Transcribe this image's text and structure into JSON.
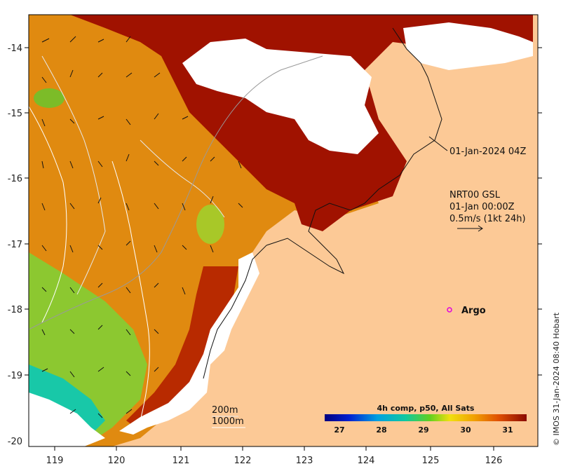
{
  "map": {
    "lon_ticks": [
      "119",
      "120",
      "121",
      "122",
      "123",
      "124",
      "125",
      "126"
    ],
    "lat_ticks": [
      "-14",
      "-15",
      "-16",
      "-17",
      "-18",
      "-19",
      "-20"
    ],
    "colors": {
      "land": "#fcc996",
      "no_data": "#ffffff",
      "sst_hot": "#a01200",
      "sst_warm": "#e08a10",
      "sst_mid": "#8cc830",
      "sst_cool": "#18c8a8"
    },
    "sst_regions": [
      "sst-hot-region",
      "sst-warm-region",
      "sst-mid-region",
      "sst-cool-region"
    ],
    "contours": [
      "200m",
      "1000m"
    ]
  },
  "annotations": {
    "image_time": "01-Jan-2024 04Z",
    "current_source": "NRT00 GSL",
    "current_time": "01-Jan 00:00Z",
    "current_scale": "0.5m/s (1kt 24h)",
    "argo_label": "Argo",
    "contour_200": "200m",
    "contour_1000": "1000m"
  },
  "colorbar": {
    "title": "4h comp, p50, All Sats",
    "ticks": [
      "27",
      "28",
      "29",
      "30",
      "31"
    ],
    "range": [
      26.6,
      31.4
    ]
  },
  "credit": "© IMOS 31-Jan-2024 08:40 Hobart"
}
